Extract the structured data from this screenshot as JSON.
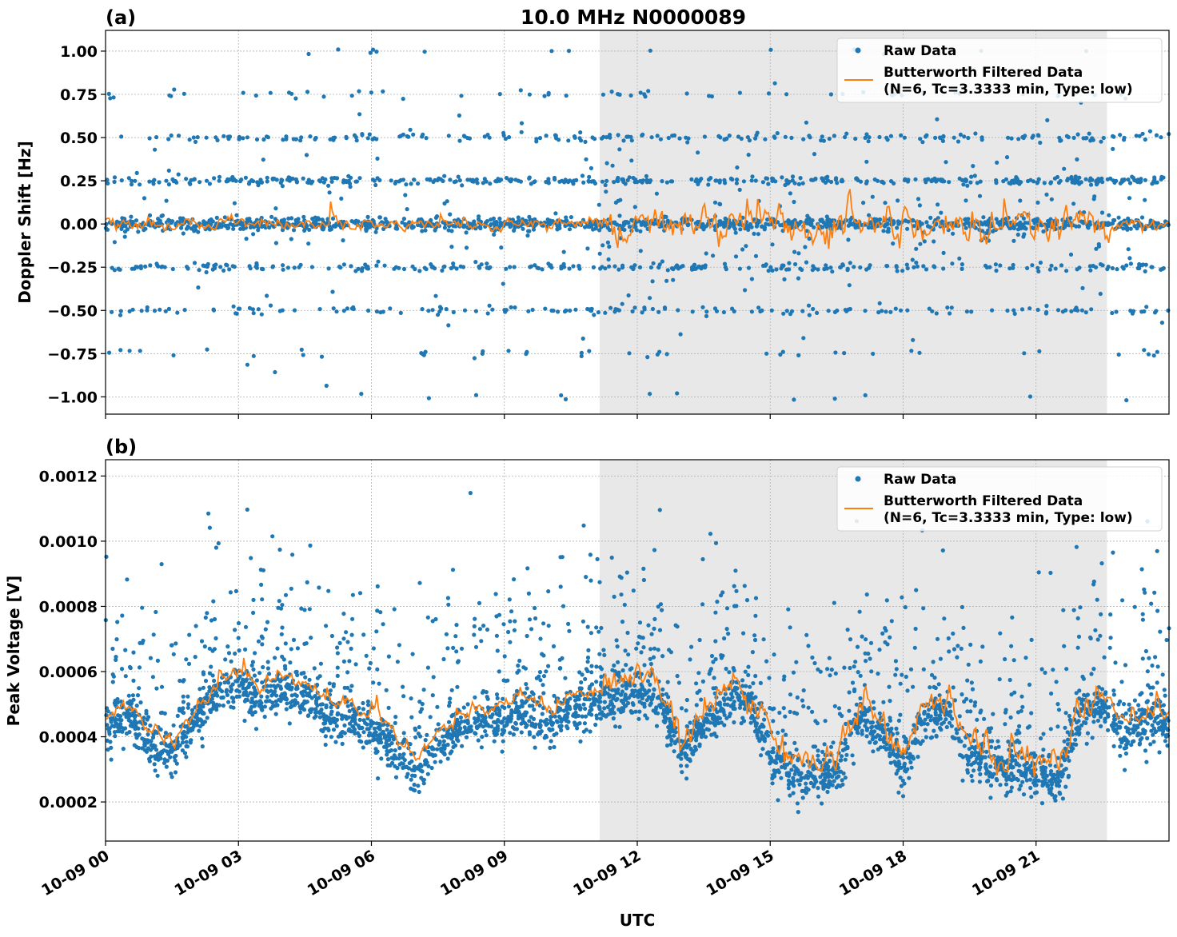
{
  "title": "10.0 MHz N0000089",
  "colors": {
    "raw": "#1f77b4",
    "filtered": "#ff7f0e",
    "shade": "#e8e8e8",
    "grid": "#b0b0b0"
  },
  "chart_data": [
    {
      "panel_label": "(a)",
      "type": "scatter",
      "ylabel": "Doppler Shift [Hz]",
      "xlim": [
        0,
        24
      ],
      "ylim": [
        -1.1,
        1.12
      ],
      "yticks": [
        1.0,
        0.75,
        0.5,
        0.25,
        0.0,
        -0.25,
        -0.5,
        -0.75,
        -1.0
      ],
      "ytick_labels": [
        "1.00",
        "0.75",
        "0.50",
        "0.25",
        "0.00",
        "−0.25",
        "−0.50",
        "−0.75",
        "−1.00"
      ],
      "shaded_x": [
        11.15,
        22.6
      ],
      "legend_position": "top-right",
      "series": [
        {
          "name": "Raw Data",
          "style": "points",
          "levels": [
            -1.0,
            -0.75,
            -0.5,
            -0.25,
            0.0,
            0.25,
            0.5,
            0.75,
            1.0
          ],
          "level_weights": [
            0.005,
            0.02,
            0.07,
            0.12,
            0.5,
            0.17,
            0.09,
            0.02,
            0.005
          ]
        },
        {
          "name": "Butterworth Filtered Data\n(N=6, Tc=3.3333 min, Type: low)",
          "style": "line",
          "baseline": 0.0,
          "amplitude_day": 0.03,
          "amplitude_shaded": 0.1
        }
      ]
    },
    {
      "panel_label": "(b)",
      "type": "scatter",
      "ylabel": "Peak Voltage [V]",
      "xlabel": "UTC",
      "xlim": [
        0,
        24
      ],
      "ylim": [
        8e-05,
        0.00125
      ],
      "yticks": [
        0.0012,
        0.001,
        0.0008,
        0.0006,
        0.0004,
        0.0002
      ],
      "ytick_labels": [
        "0.0012",
        "0.0010",
        "0.0008",
        "0.0006",
        "0.0004",
        "0.0002"
      ],
      "shaded_x": [
        11.15,
        22.6
      ],
      "legend_position": "top-right",
      "baseline_profile": {
        "hours": [
          0,
          0.5,
          1,
          1.5,
          2,
          2.5,
          3,
          3.5,
          4,
          4.5,
          5,
          5.5,
          6,
          6.5,
          7,
          7.5,
          8,
          8.5,
          9,
          9.5,
          10,
          10.5,
          11,
          11.5,
          12,
          12.5,
          13,
          13.5,
          14,
          14.5,
          15,
          15.5,
          16,
          16.5,
          17,
          17.5,
          18,
          18.5,
          19,
          19.5,
          20,
          20.5,
          21,
          21.5,
          22,
          22.5,
          23,
          23.5,
          24
        ],
        "values": [
          0.00042,
          0.00047,
          0.00038,
          0.00034,
          0.00044,
          0.00053,
          0.00056,
          0.00051,
          0.00055,
          0.00052,
          0.00046,
          0.00045,
          0.00043,
          0.00037,
          0.00028,
          0.00037,
          0.00043,
          0.00045,
          0.00046,
          0.00048,
          0.00042,
          0.00049,
          0.0005,
          0.00052,
          0.00054,
          0.00051,
          0.00036,
          0.00044,
          0.0005,
          0.00052,
          0.00034,
          0.00028,
          0.00027,
          0.00029,
          0.00046,
          0.00041,
          0.0003,
          0.00046,
          0.00047,
          0.00034,
          0.0003,
          0.00031,
          0.00029,
          0.00026,
          0.00047,
          0.0005,
          0.0004,
          0.00044,
          0.00043
        ]
      },
      "series": [
        {
          "name": "Raw Data",
          "style": "points"
        },
        {
          "name": "Butterworth Filtered Data\n(N=6, Tc=3.3333 min, Type: low)",
          "style": "line"
        }
      ]
    }
  ],
  "xaxis": {
    "label": "UTC",
    "ticks": [
      0,
      3,
      6,
      9,
      12,
      15,
      18,
      21
    ],
    "tick_labels": [
      "10-09 00",
      "10-09 03",
      "10-09 06",
      "10-09 09",
      "10-09 12",
      "10-09 15",
      "10-09 18",
      "10-09 21"
    ]
  },
  "legend": {
    "raw_label": "Raw Data",
    "filtered_line1": "Butterworth Filtered Data",
    "filtered_line2": "(N=6, Tc=3.3333 min, Type: low)"
  }
}
